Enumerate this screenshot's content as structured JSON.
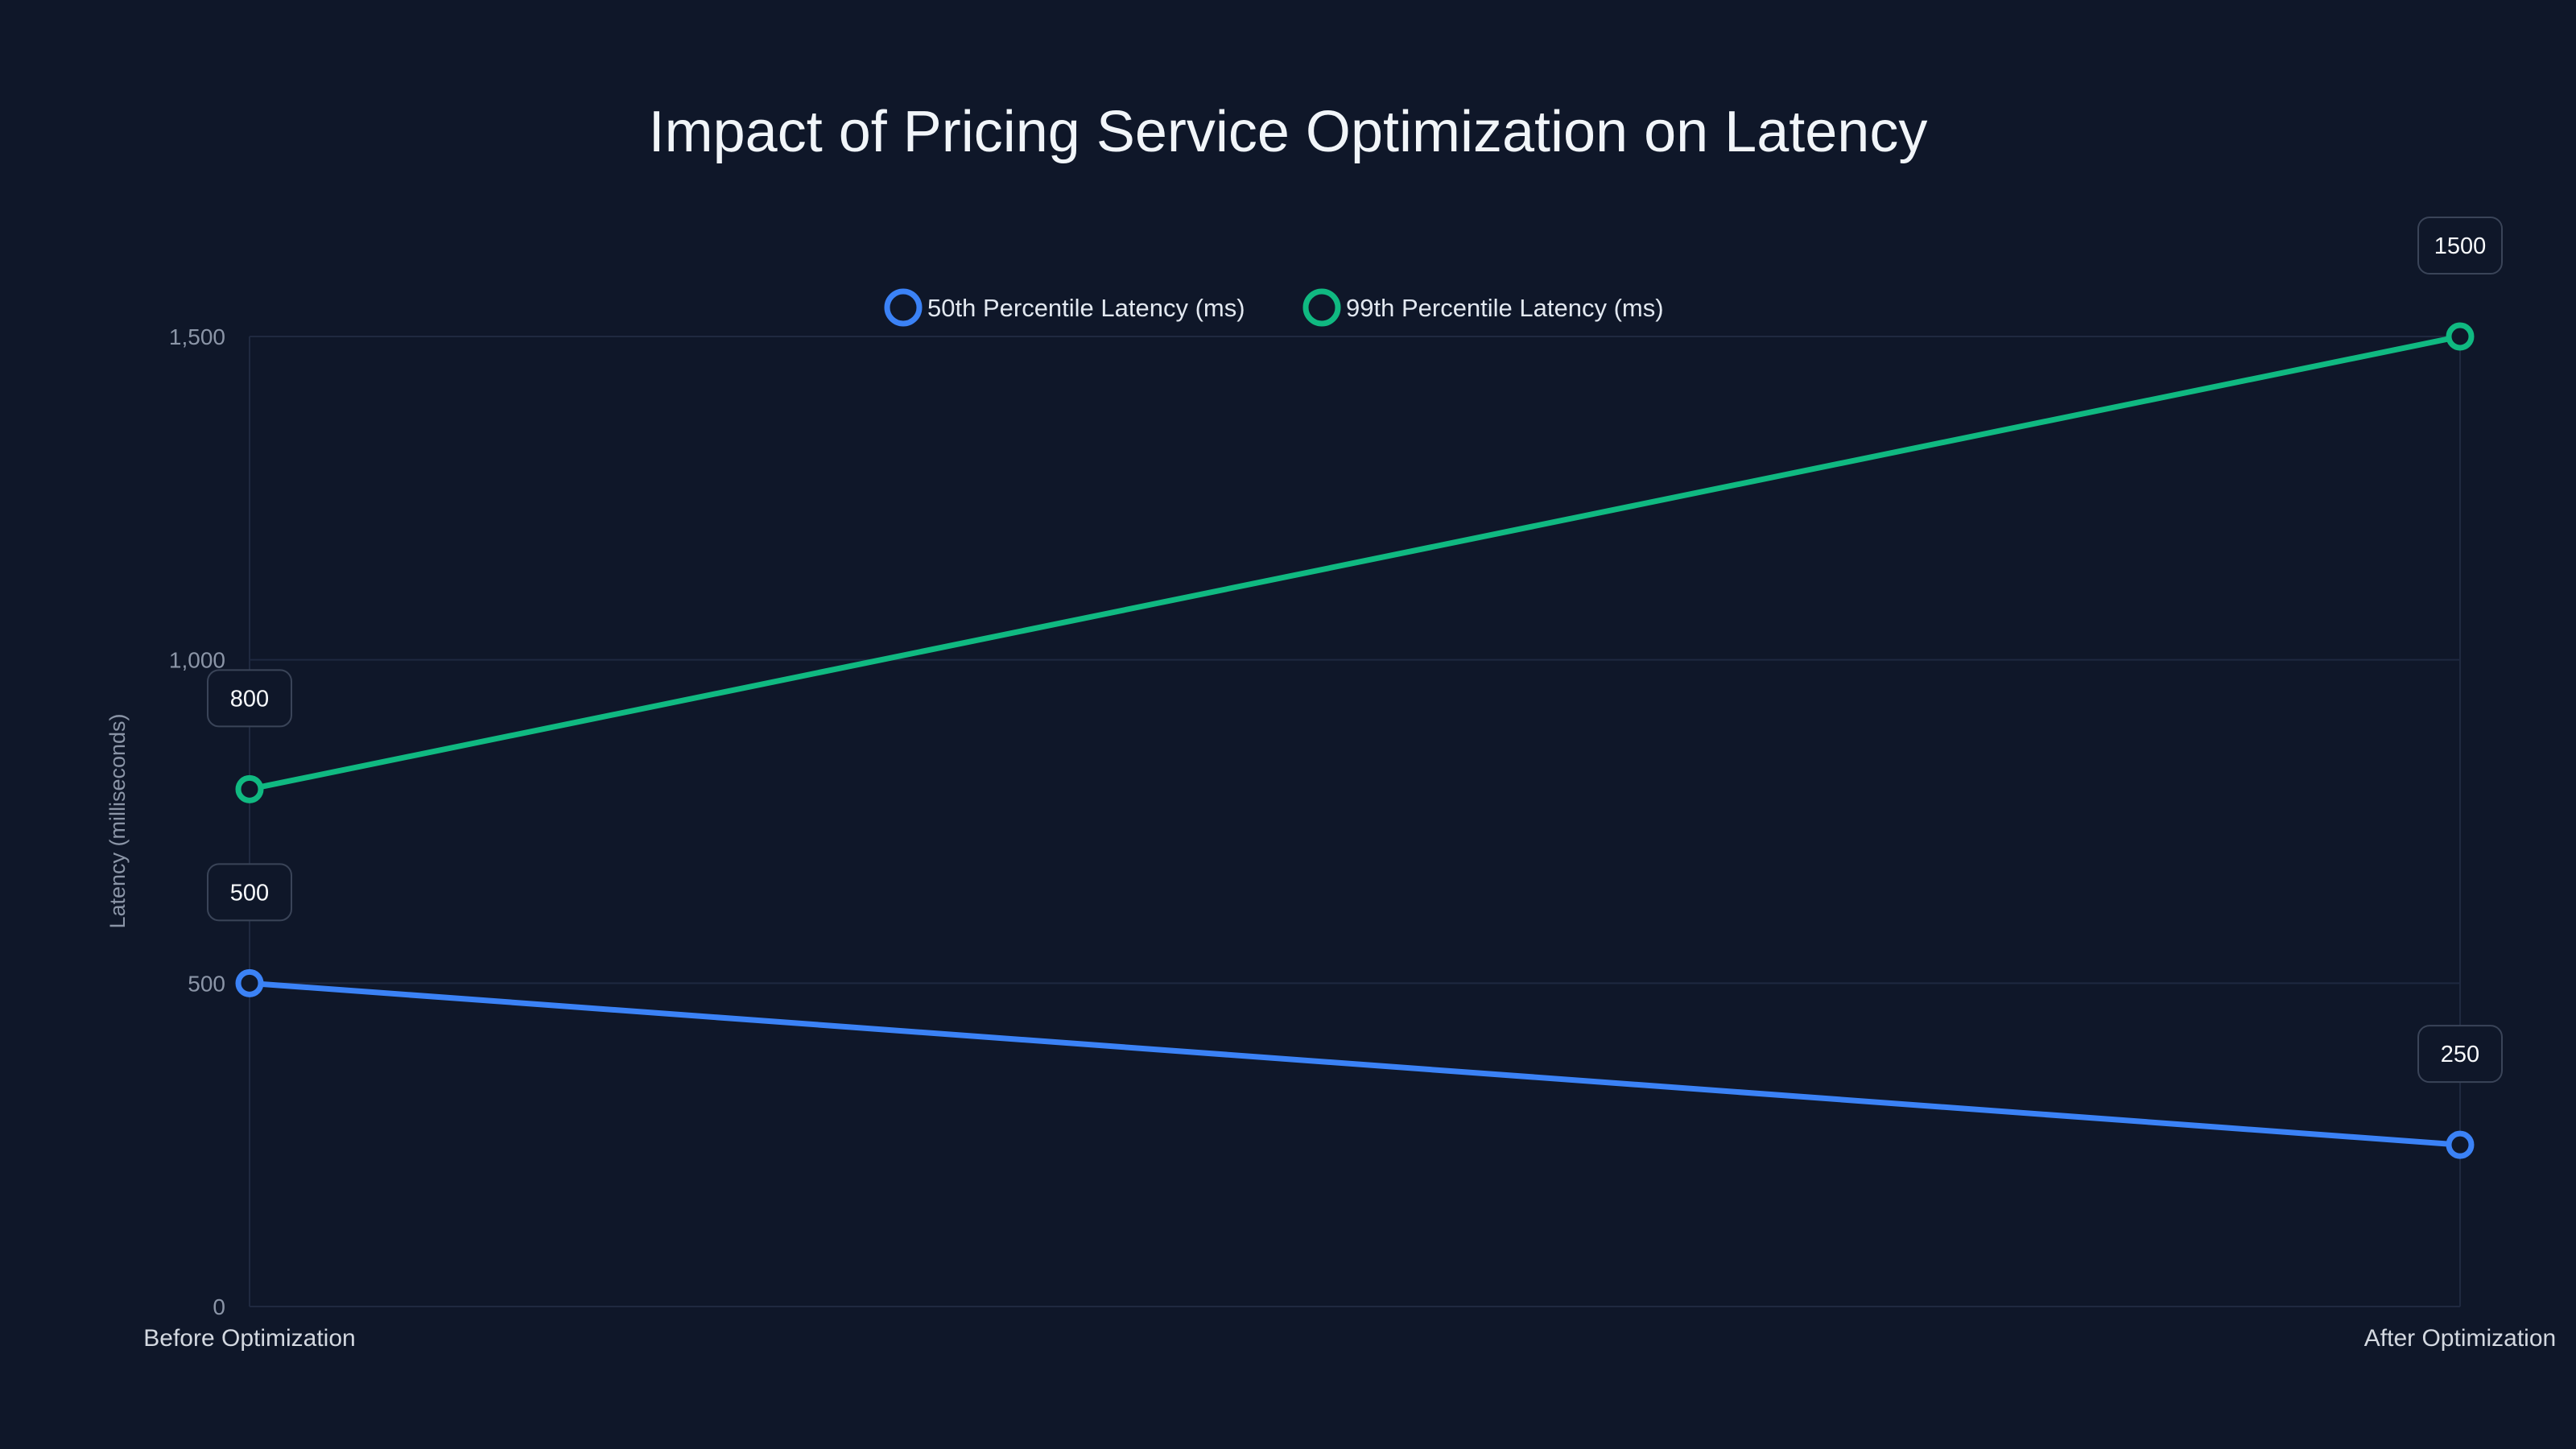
{
  "chart_data": {
    "type": "line",
    "title": "Impact of Pricing Service Optimization on Latency",
    "xlabel": "",
    "ylabel": "Latency (milliseconds)",
    "categories": [
      "Before Optimization",
      "After Optimization"
    ],
    "ylim": [
      0,
      1500
    ],
    "yticks": [
      0,
      500,
      1000,
      1500
    ],
    "ytick_labels": [
      "0",
      "500",
      "1,000",
      "1,500"
    ],
    "grid": true,
    "legend_position": "top-center",
    "series": [
      {
        "name": "50th Percentile Latency (ms)",
        "color": "#3b82f6",
        "values": [
          500,
          250
        ],
        "data_labels": [
          "500",
          "250"
        ]
      },
      {
        "name": "99th Percentile Latency (ms)",
        "color": "#10b981",
        "values": [
          800,
          1500
        ],
        "data_labels": [
          "800",
          "1500"
        ]
      }
    ]
  }
}
